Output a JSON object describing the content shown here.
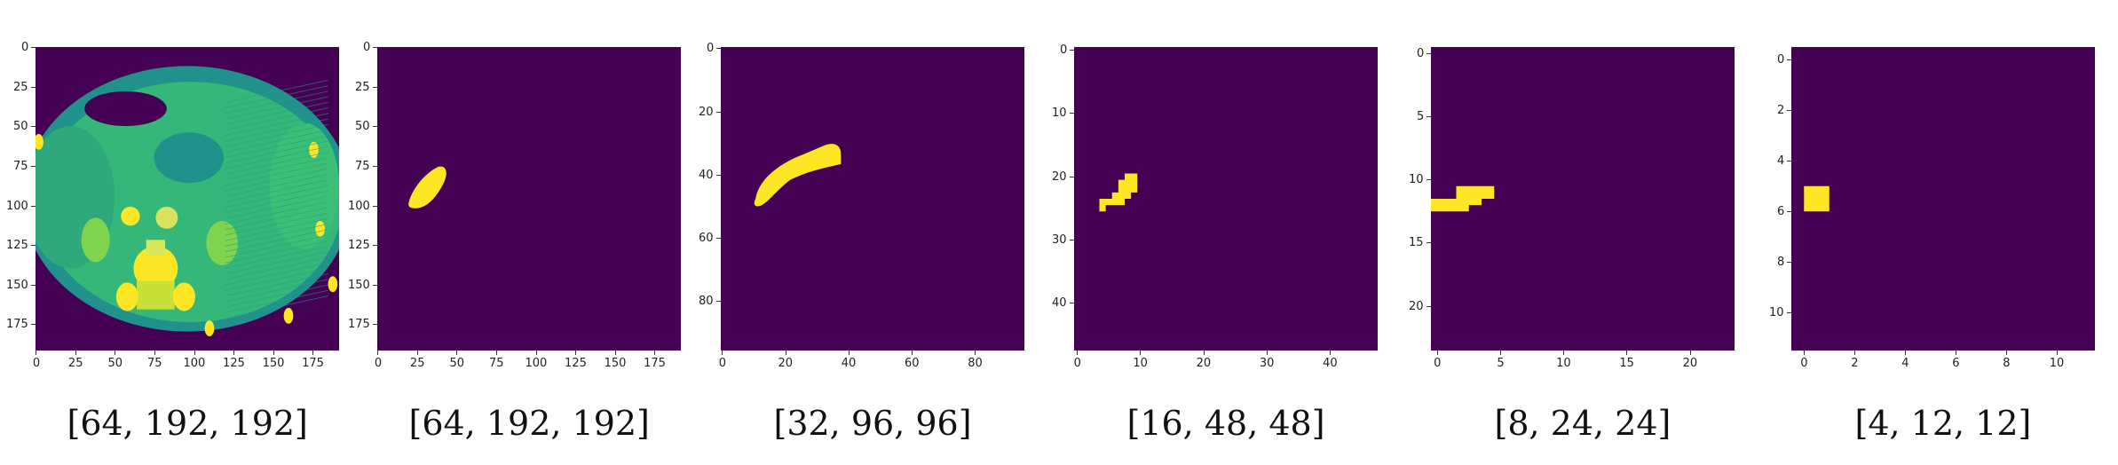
{
  "colors": {
    "background": "#440154",
    "mask": "#fde725",
    "tissue": "#35b779",
    "tissue_dark": "#21918c"
  },
  "panels": [
    {
      "caption": "[64, 192, 192]",
      "extent": 192,
      "xticks": [
        "0",
        "25",
        "50",
        "75",
        "100",
        "125",
        "150",
        "175"
      ],
      "xvals": [
        0,
        25,
        50,
        75,
        100,
        125,
        150,
        175
      ],
      "yticks": [
        "0",
        "25",
        "50",
        "75",
        "100",
        "125",
        "150",
        "175"
      ],
      "yvals": [
        0,
        25,
        50,
        75,
        100,
        125,
        150,
        175
      ]
    },
    {
      "caption": "[64, 192, 192]",
      "extent": 192,
      "xticks": [
        "0",
        "25",
        "50",
        "75",
        "100",
        "125",
        "150",
        "175"
      ],
      "xvals": [
        0,
        25,
        50,
        75,
        100,
        125,
        150,
        175
      ],
      "yticks": [
        "0",
        "25",
        "50",
        "75",
        "100",
        "125",
        "150",
        "175"
      ],
      "yvals": [
        0,
        25,
        50,
        75,
        100,
        125,
        150,
        175
      ]
    },
    {
      "caption": "[32, 96, 96]",
      "extent": 96,
      "xticks": [
        "0",
        "20",
        "40",
        "60",
        "80"
      ],
      "xvals": [
        0,
        20,
        40,
        60,
        80
      ],
      "yticks": [
        "0",
        "20",
        "40",
        "60",
        "80"
      ],
      "yvals": [
        0,
        20,
        40,
        60,
        80
      ]
    },
    {
      "caption": "[16, 48, 48]",
      "extent": 48,
      "xticks": [
        "0",
        "10",
        "20",
        "30",
        "40"
      ],
      "xvals": [
        0,
        10,
        20,
        30,
        40
      ],
      "yticks": [
        "0",
        "10",
        "20",
        "30",
        "40"
      ],
      "yvals": [
        0,
        10,
        20,
        30,
        40
      ]
    },
    {
      "caption": "[8, 24, 24]",
      "extent": 24,
      "xticks": [
        "0",
        "5",
        "10",
        "15",
        "20"
      ],
      "xvals": [
        0,
        5,
        10,
        15,
        20
      ],
      "yticks": [
        "0",
        "5",
        "10",
        "15",
        "20"
      ],
      "yvals": [
        0,
        5,
        10,
        15,
        20
      ]
    },
    {
      "caption": "[4, 12, 12]",
      "extent": 12,
      "xticks": [
        "0",
        "2",
        "4",
        "6",
        "8",
        "10"
      ],
      "xvals": [
        0,
        2,
        4,
        6,
        8,
        10
      ],
      "yticks": [
        "0",
        "2",
        "4",
        "6",
        "8",
        "10"
      ],
      "yvals": [
        0,
        2,
        4,
        6,
        8,
        10
      ]
    }
  ]
}
